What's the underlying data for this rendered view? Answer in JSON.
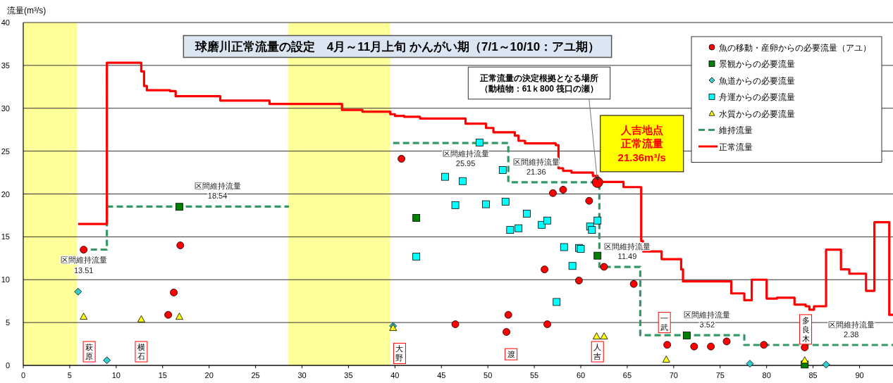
{
  "chart_data": {
    "type": "scatter",
    "title": "球磨川正常流量の設定　4月～11月上旬 かんがい期（7/1～10/10：アユ期）",
    "ylabel": "流量(m³/s)",
    "xlim": [
      0,
      93.6
    ],
    "ylim": [
      0,
      40
    ],
    "xticks": [
      0,
      5,
      10,
      15,
      20,
      25,
      30,
      35,
      40,
      45,
      50,
      55,
      60,
      65,
      70,
      75,
      80,
      85,
      90
    ],
    "yticks": [
      0,
      5,
      10,
      15,
      20,
      25,
      30,
      35,
      40
    ],
    "grid": "y",
    "legend": "top right",
    "bands": [
      {
        "axis": "x",
        "from": 0,
        "to": 5.8,
        "color": "#ffff99"
      },
      {
        "axis": "x",
        "from": 28.5,
        "to": 39.5,
        "color": "#ffff99"
      }
    ],
    "series": [
      {
        "name": "魚の移動・産卵からの必要流量（アユ）",
        "marker": "circle",
        "color": "#ff0000",
        "x": [
          6.5,
          16.9,
          16.2,
          15.6,
          40.7,
          46.5,
          52.2,
          52.0,
          56.4,
          56.1,
          57.0,
          58.1,
          59.8,
          60.9,
          62.5,
          65.7,
          69.3,
          72.2,
          74.0,
          75.7,
          79.7,
          84.1
        ],
        "values": [
          13.5,
          14.0,
          8.5,
          5.9,
          24.1,
          4.8,
          5.9,
          3.9,
          4.8,
          11.2,
          20.1,
          20.5,
          9.9,
          19.2,
          11.5,
          9.5,
          2.4,
          2.2,
          2.2,
          2.8,
          2.4,
          2.1
        ]
      },
      {
        "name": "景観からの必要流量",
        "marker": "square",
        "color": "#007f00",
        "x": [
          16.8,
          42.3,
          61.8,
          71.4,
          84.1
        ],
        "values": [
          18.5,
          17.2,
          12.8,
          3.5,
          0.1
        ]
      },
      {
        "name": "魚道からの必要流量",
        "marker": "diamond",
        "color": "#33cccc",
        "x": [
          5.9,
          9.0,
          39.8,
          78.2,
          86.4
        ],
        "values": [
          8.6,
          0.6,
          4.6,
          0.2,
          0.1
        ]
      },
      {
        "name": "舟運からの必要流量",
        "marker": "square",
        "color": "#00ffff",
        "x": [
          49.1,
          45.4,
          47.3,
          51.6,
          46.5,
          49.8,
          51.9,
          54.2,
          55.8,
          56.4,
          52.4,
          53.3,
          61.0,
          61.2,
          61.8,
          42.3,
          58.2,
          59.8,
          60.0,
          59.1,
          57.4
        ],
        "values": [
          26.0,
          22.0,
          21.5,
          22.8,
          18.7,
          18.8,
          19.1,
          17.7,
          16.4,
          16.9,
          15.8,
          16.0,
          16.2,
          15.8,
          16.9,
          12.7,
          13.8,
          13.7,
          13.6,
          11.6,
          7.4
        ]
      },
      {
        "name": "水質からの必要流量",
        "marker": "triangle",
        "color": "#ffff00",
        "x": [
          6.5,
          12.7,
          16.8,
          39.8,
          61.7,
          62.5,
          69.2,
          84.1
        ],
        "values": [
          5.7,
          5.4,
          5.7,
          4.4,
          3.4,
          3.4,
          0.7,
          0.6
        ]
      },
      {
        "name": "維持流量",
        "type": "step",
        "line_style": "dashed",
        "color": "#339966",
        "x": [
          6.2,
          9.0,
          28.6,
          39.8,
          52.2,
          62.0,
          66.4,
          77.6,
          93.6
        ],
        "values": [
          13.51,
          18.54,
          null,
          25.95,
          21.36,
          11.49,
          3.52,
          2.38,
          2.38
        ]
      },
      {
        "name": "正常流量",
        "type": "step",
        "line_style": "solid",
        "color": "#ff0000",
        "x": [
          5.9,
          9.0,
          12.7,
          13.0,
          13.3,
          15.8,
          16.4,
          21.2,
          26.5,
          34.3,
          36.5,
          39.5,
          40.0,
          41.0,
          42.7,
          47.6,
          49.8,
          50.6,
          52.9,
          53.3,
          54.0,
          57.3,
          57.6,
          58.1,
          59.0,
          61.3,
          61.8,
          64.6,
          66.5,
          66.7,
          68.7,
          70.8,
          71.0,
          76.2,
          77.6,
          78.4,
          80.0,
          81.1,
          83.0,
          84.2,
          84.6,
          85.1,
          86.4,
          88.0,
          88.9,
          90.7,
          91.6,
          93.2,
          93.6
        ],
        "values": [
          16.5,
          35.3,
          34.3,
          32.6,
          32.1,
          32.0,
          31.4,
          30.9,
          30.5,
          29.8,
          29.6,
          29.3,
          29.1,
          29.0,
          28.8,
          28.2,
          27.7,
          27.2,
          26.8,
          26.2,
          25.9,
          25.7,
          23.0,
          22.7,
          22.5,
          22.1,
          21.4,
          20.8,
          14.5,
          13.3,
          12.4,
          11.2,
          9.8,
          8.4,
          7.6,
          10.0,
          7.8,
          7.9,
          7.1,
          6.9,
          6.5,
          6.9,
          13.5,
          11.2,
          10.7,
          8.7,
          16.7,
          5.9,
          5.9
        ]
      }
    ],
    "annotations": [
      {
        "text": "正常流量の決定根拠となる場所（動植物：61ｋ800 筏口の瀬）",
        "x": 61.8,
        "y": 21.36
      },
      {
        "text": "人吉地点正常流量 21.36m³/s",
        "x": 61.8,
        "y": 21.36
      },
      {
        "text": "区間維持流量 13.51",
        "x": 6.5,
        "y": 13.51
      },
      {
        "text": "区間維持流量 18.54",
        "x": 20.9,
        "y": 18.54
      },
      {
        "text": "区間維持流量 25.95",
        "x": 47.6,
        "y": 25.95
      },
      {
        "text": "区間維持流量 21.36",
        "x": 55.2,
        "y": 21.36
      },
      {
        "text": "区間維持流量 11.49",
        "x": 65.0,
        "y": 11.49
      },
      {
        "text": "区間維持流量 3.52",
        "x": 73.6,
        "y": 3.52
      },
      {
        "text": "区間維持流量 2.38",
        "x": 89.1,
        "y": 2.38
      },
      {
        "text": "萩原",
        "x": 7.1,
        "y": 1.6
      },
      {
        "text": "横石",
        "x": 12.7,
        "y": 1.6
      },
      {
        "text": "大野",
        "x": 40.5,
        "y": 1.4
      },
      {
        "text": "渡",
        "x": 52.5,
        "y": 1.3
      },
      {
        "text": "人吉",
        "x": 61.8,
        "y": 1.6
      },
      {
        "text": "一武",
        "x": 69.0,
        "y": 5.0
      },
      {
        "text": "多良木",
        "x": 84.2,
        "y": 4.2
      }
    ]
  }
}
